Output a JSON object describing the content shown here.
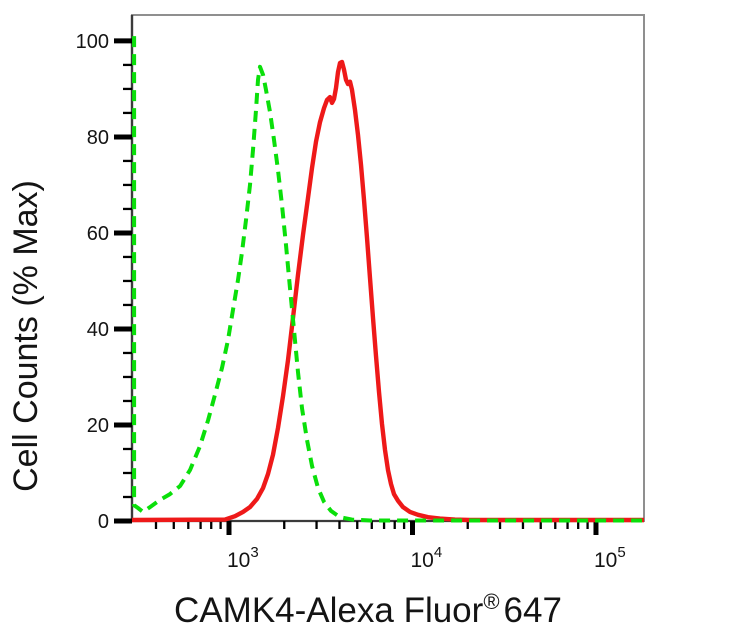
{
  "chart_data": {
    "type": "line",
    "subtype": "flow-cytometry-overlay-histogram",
    "title": "",
    "xlabel": "CAMK4-Alexa Fluor® 647",
    "xlabel_parts": {
      "pre": "CAMK4-Alexa Fluor",
      "sup": "®",
      "post": "647"
    },
    "ylabel": "Cell Counts (% Max)",
    "x_scale": "log",
    "x_range": [
      296,
      182700
    ],
    "y_range_pct": [
      0,
      105.4
    ],
    "grid": false,
    "legend": "none",
    "y_ticks_major": [
      0,
      20,
      40,
      60,
      80,
      100
    ],
    "y_tick_minor_step": 5,
    "x_ticks_major": [
      {
        "value": 1000,
        "base": "10",
        "exponent": "3"
      },
      {
        "value": 10000,
        "base": "10",
        "exponent": "4"
      },
      {
        "value": 100000,
        "base": "10",
        "exponent": "5"
      }
    ],
    "x_ticks_minor": [
      400,
      500,
      600,
      700,
      800,
      900,
      2000,
      3000,
      4000,
      5000,
      6000,
      7000,
      8000,
      9000,
      20000,
      30000,
      40000,
      50000,
      60000,
      70000,
      80000,
      90000
    ],
    "colors": {
      "frame_gray": "#8F8F8F",
      "axis_dark": "#3B3B3B",
      "tick_black": "#000000",
      "text": "#141414",
      "red_series": "#EE1919",
      "green_series": "#0ADF0A"
    },
    "series": [
      {
        "id": "red-solid",
        "line_style": "solid",
        "color": "#EE1919",
        "stroke_width": 4.4,
        "peak": {
          "x": 4128,
          "pct": 95.6
        },
        "points": [
          [
            296,
            0.2
          ],
          [
            951,
            0.3
          ],
          [
            1078,
            1.0
          ],
          [
            1192,
            1.9
          ],
          [
            1302,
            2.9
          ],
          [
            1421,
            4.6
          ],
          [
            1533,
            6.9
          ],
          [
            1631,
            9.8
          ],
          [
            1737,
            13.8
          ],
          [
            1849,
            19.4
          ],
          [
            1970,
            26.0
          ],
          [
            2097,
            33.5
          ],
          [
            2233,
            42.3
          ],
          [
            2376,
            51.3
          ],
          [
            2531,
            59.6
          ],
          [
            2695,
            67.3
          ],
          [
            2833,
            73.5
          ],
          [
            2979,
            79.0
          ],
          [
            3133,
            83.1
          ],
          [
            3294,
            86.0
          ],
          [
            3420,
            87.7
          ],
          [
            3552,
            88.3
          ],
          [
            3642,
            87.1
          ],
          [
            3735,
            87.9
          ],
          [
            3830,
            90.2
          ],
          [
            3926,
            93.5
          ],
          [
            4026,
            95.4
          ],
          [
            4128,
            95.6
          ],
          [
            4233,
            94.0
          ],
          [
            4341,
            91.9
          ],
          [
            4452,
            91.0
          ],
          [
            4565,
            91.5
          ],
          [
            4680,
            89.8
          ],
          [
            4860,
            85.6
          ],
          [
            5047,
            80.4
          ],
          [
            5240,
            74.2
          ],
          [
            5441,
            66.9
          ],
          [
            5649,
            59.0
          ],
          [
            5866,
            50.6
          ],
          [
            6091,
            42.3
          ],
          [
            6327,
            34.4
          ],
          [
            6567,
            26.9
          ],
          [
            6821,
            20.2
          ],
          [
            7082,
            14.8
          ],
          [
            7354,
            10.6
          ],
          [
            7634,
            7.7
          ],
          [
            7925,
            5.6
          ],
          [
            8337,
            4.2
          ],
          [
            8877,
            2.9
          ],
          [
            9692,
            1.9
          ],
          [
            10715,
            1.3
          ],
          [
            12152,
            0.8
          ],
          [
            14125,
            0.5
          ],
          [
            17045,
            0.3
          ],
          [
            20585,
            0.2
          ],
          [
            182700,
            0.2
          ]
        ]
      },
      {
        "id": "green-dashed",
        "line_style": "dashed",
        "color": "#0ADF0A",
        "stroke_width": 4.0,
        "dash": [
          11,
          7
        ],
        "peak": {
          "x": 1476,
          "pct": 94.6
        },
        "points": [
          [
            304,
            101.0
          ],
          [
            304,
            3.3
          ],
          [
            319,
            2.7
          ],
          [
            340,
            1.9
          ],
          [
            371,
            2.9
          ],
          [
            421,
            4.4
          ],
          [
            477,
            5.6
          ],
          [
            541,
            7.3
          ],
          [
            613,
            10.6
          ],
          [
            695,
            15.6
          ],
          [
            769,
            21.0
          ],
          [
            839,
            26.3
          ],
          [
            916,
            31.9
          ],
          [
            988,
            37.7
          ],
          [
            1051,
            44.0
          ],
          [
            1120,
            50.2
          ],
          [
            1177,
            56.0
          ],
          [
            1238,
            62.7
          ],
          [
            1302,
            70.0
          ],
          [
            1352,
            77.3
          ],
          [
            1403,
            85.6
          ],
          [
            1439,
            91.9
          ],
          [
            1476,
            94.6
          ],
          [
            1533,
            92.9
          ],
          [
            1591,
            89.8
          ],
          [
            1673,
            85.2
          ],
          [
            1759,
            79.4
          ],
          [
            1849,
            73.1
          ],
          [
            1945,
            65.8
          ],
          [
            2045,
            57.5
          ],
          [
            2150,
            48.5
          ],
          [
            2261,
            39.8
          ],
          [
            2376,
            31.0
          ],
          [
            2500,
            23.5
          ],
          [
            2661,
            16.9
          ],
          [
            2833,
            11.5
          ],
          [
            3055,
            6.9
          ],
          [
            3294,
            4.0
          ],
          [
            3597,
            2.1
          ],
          [
            4026,
            0.8
          ],
          [
            4680,
            0.3
          ],
          [
            5866,
            0.1
          ],
          [
            182700,
            0.1
          ]
        ]
      }
    ]
  }
}
